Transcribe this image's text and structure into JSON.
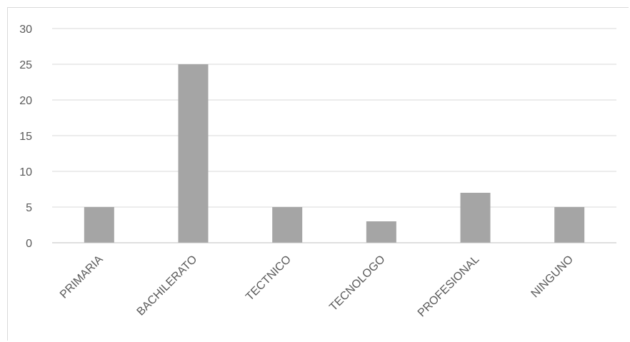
{
  "chart_data": {
    "type": "bar",
    "title": "",
    "xlabel": "",
    "ylabel": "",
    "categories": [
      "PRIMARIA",
      "BACHILERATO",
      "TECTNICO",
      "TECNOLOGO",
      "PROFESIONAL",
      "NINGUNO"
    ],
    "values": [
      5,
      25,
      5,
      3,
      7,
      5
    ],
    "ylim": [
      0,
      30
    ],
    "yticks": [
      "0",
      "5",
      "10",
      "15",
      "20",
      "25",
      "30"
    ],
    "grid": true,
    "legend": "none",
    "bar_color": "#a5a5a5",
    "grid_color": "#d9d9d9",
    "axis_color": "#bfbfbf"
  }
}
